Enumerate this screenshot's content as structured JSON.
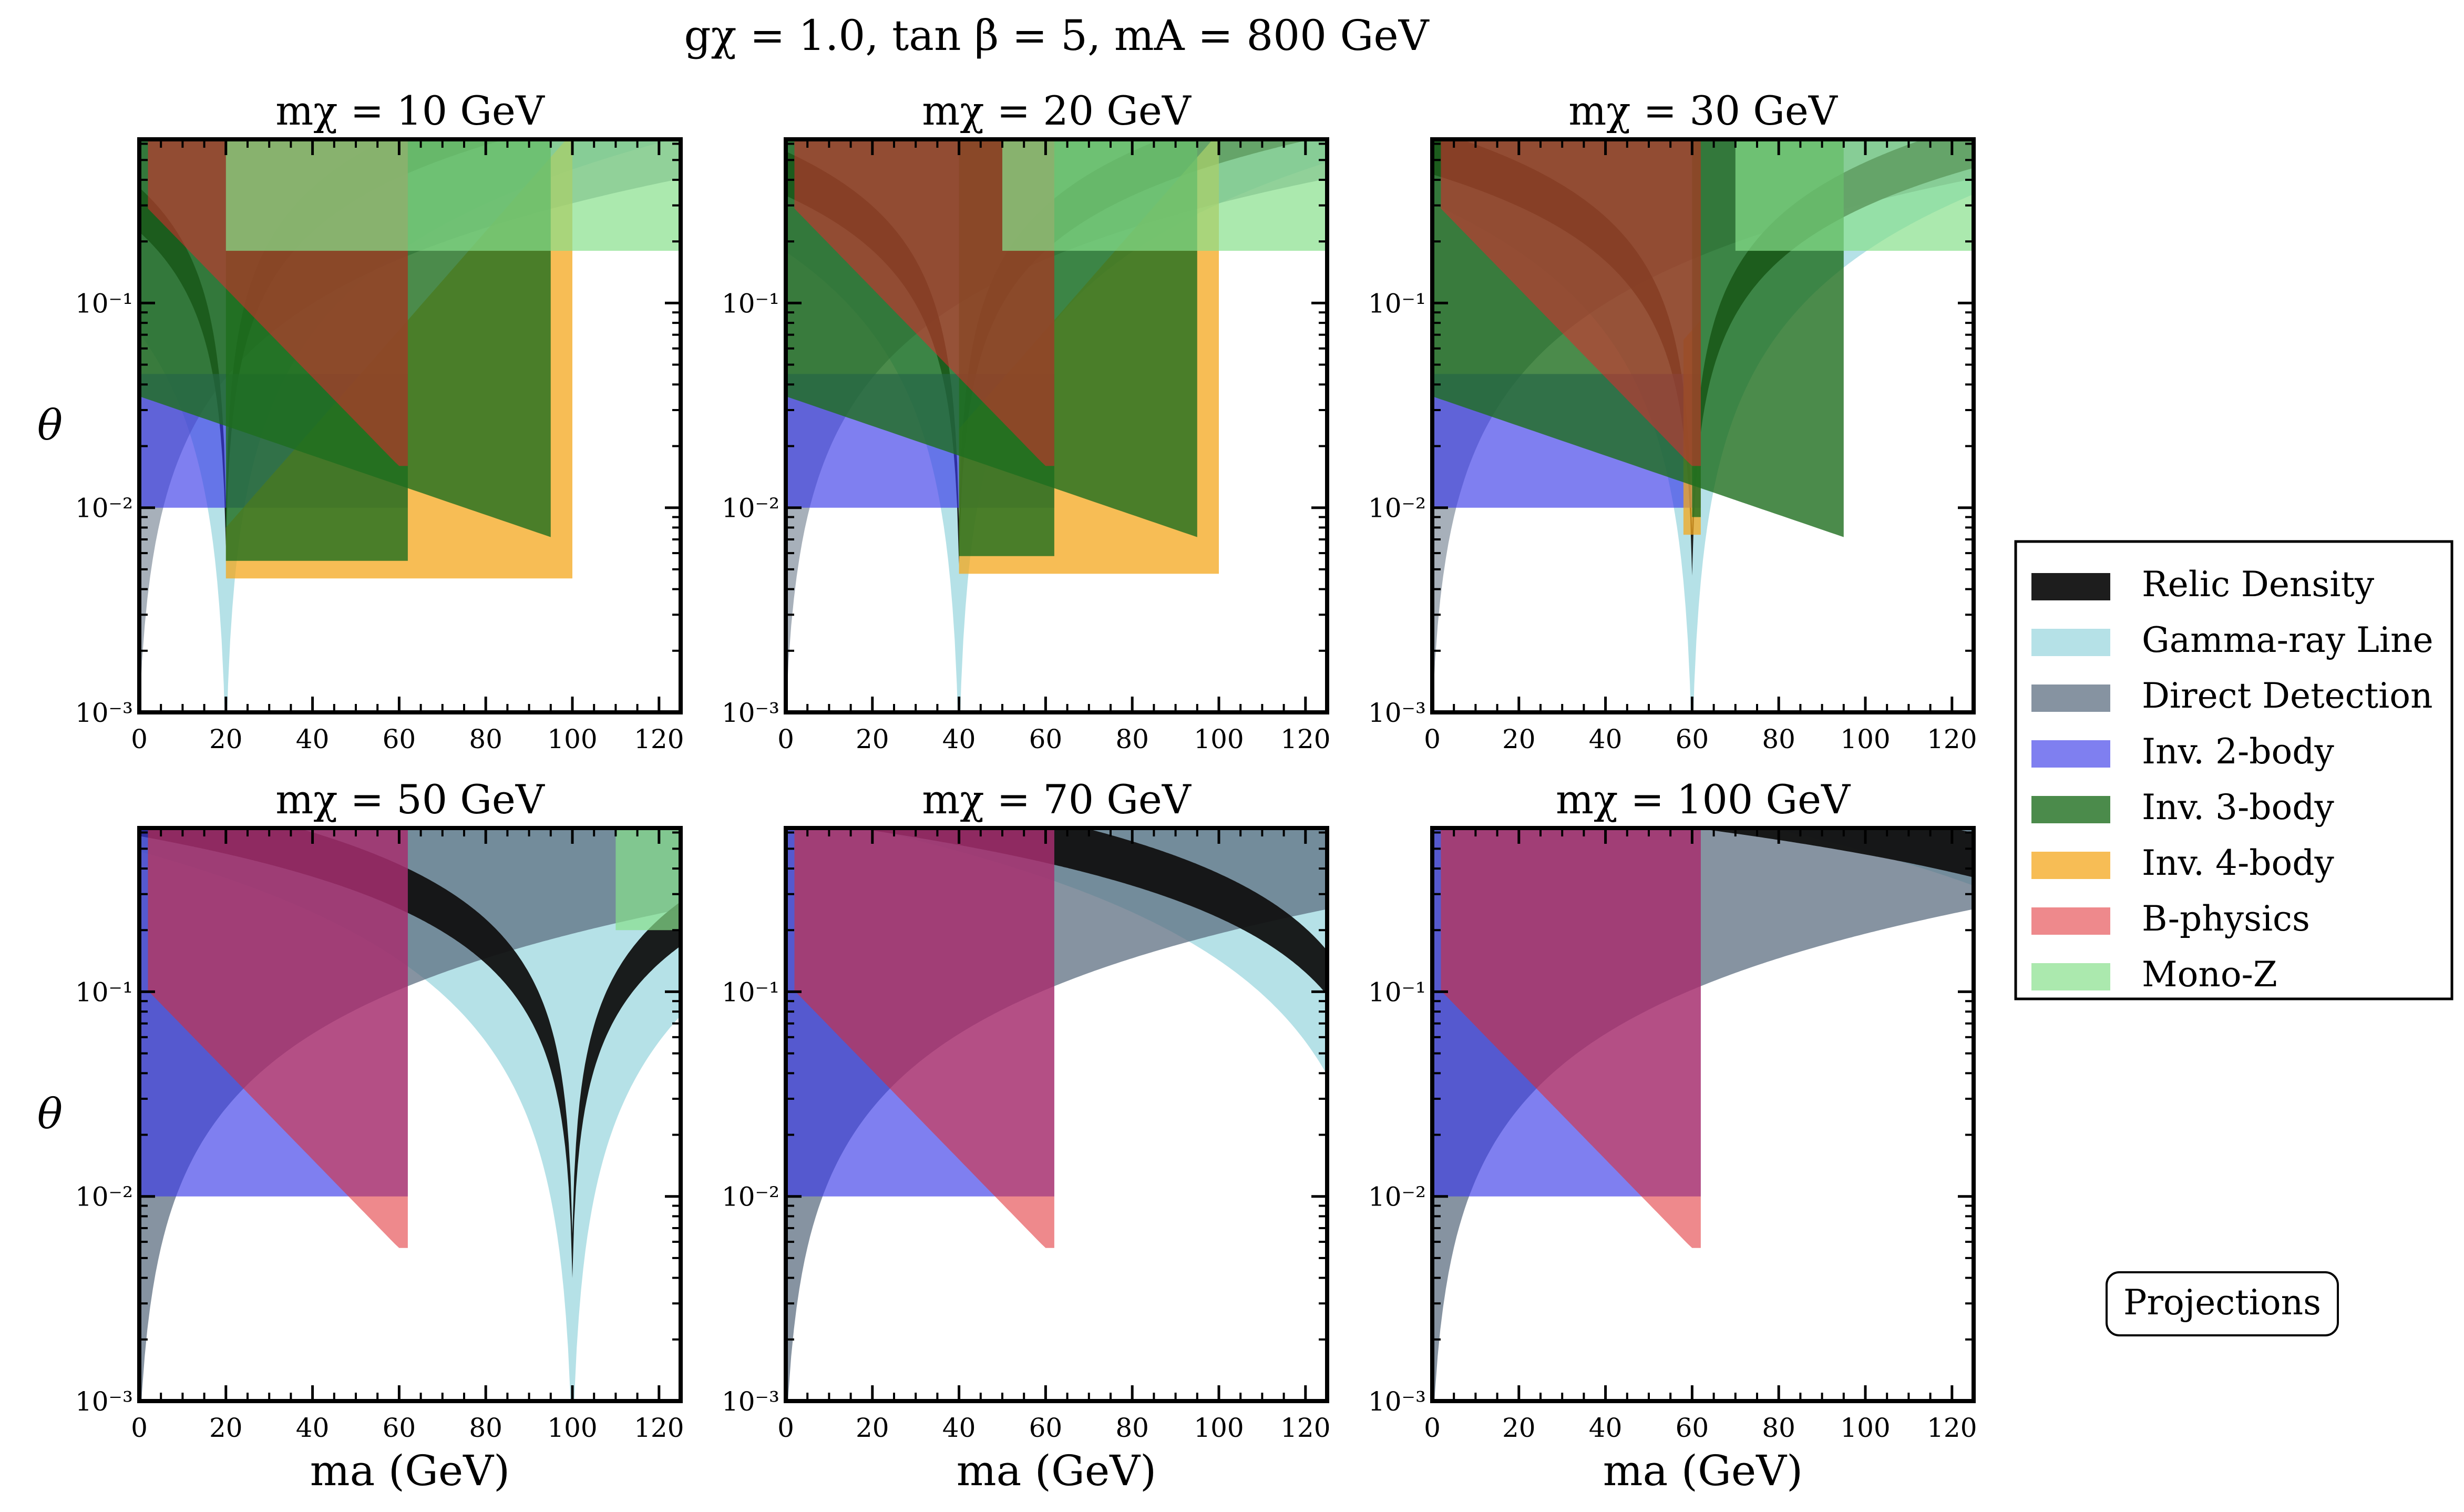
{
  "figure": {
    "suptitle": "gχ = 1.0,  tan β = 5,  mA = 800 GeV",
    "note_box": "Projections"
  },
  "colors": {
    "relic": "#111111",
    "gamma": "#a8dce3",
    "direct": "#5e6f82",
    "inv2": "#3a3ae8",
    "inv3": "#1e6e1e",
    "inv4": "#f4a71c",
    "bphys": "#e0282e",
    "monoz": "#88e08c"
  },
  "legend": [
    {
      "key": "relic",
      "label": "Relic Density",
      "alpha": 0.95
    },
    {
      "key": "gamma",
      "label": "Gamma-ray Line",
      "alpha": 0.85
    },
    {
      "key": "direct",
      "label": "Direct Detection",
      "alpha": 0.75
    },
    {
      "key": "inv2",
      "label": "Inv. 2-body",
      "alpha": 0.65
    },
    {
      "key": "inv3",
      "label": "Inv. 3-body",
      "alpha": 0.8
    },
    {
      "key": "inv4",
      "label": "Inv. 4-body",
      "alpha": 0.75
    },
    {
      "key": "bphys",
      "label": "B-physics",
      "alpha": 0.55
    },
    {
      "key": "monoz",
      "label": "Mono-Z",
      "alpha": 0.7
    }
  ],
  "chart_data": [
    {
      "type": "area",
      "mchi": 10,
      "title": "mχ = 10 GeV",
      "xlabel": "",
      "ylabel": "θ",
      "xlim": [
        0,
        125
      ],
      "ylim_log10": [
        -3,
        -0.2
      ],
      "xticks": [
        "0",
        "20",
        "40",
        "60",
        "80",
        "100",
        "120"
      ],
      "yticks": [
        "10⁻³",
        "10⁻²",
        "10⁻¹"
      ]
    },
    {
      "type": "area",
      "mchi": 20,
      "title": "mχ = 20 GeV",
      "xlabel": "",
      "ylabel": "",
      "xlim": [
        0,
        125
      ],
      "ylim_log10": [
        -3,
        -0.2
      ],
      "xticks": [
        "0",
        "20",
        "40",
        "60",
        "80",
        "100",
        "120"
      ],
      "yticks": [
        "10⁻³",
        "10⁻²",
        "10⁻¹"
      ]
    },
    {
      "type": "area",
      "mchi": 30,
      "title": "mχ = 30 GeV",
      "xlabel": "",
      "ylabel": "",
      "xlim": [
        0,
        125
      ],
      "ylim_log10": [
        -3,
        -0.2
      ],
      "xticks": [
        "0",
        "20",
        "40",
        "60",
        "80",
        "100",
        "120"
      ],
      "yticks": [
        "10⁻³",
        "10⁻²",
        "10⁻¹"
      ]
    },
    {
      "type": "area",
      "mchi": 50,
      "title": "mχ = 50 GeV",
      "xlabel": "ma (GeV)",
      "ylabel": "θ",
      "xlim": [
        0,
        125
      ],
      "ylim_log10": [
        -3,
        -0.2
      ],
      "xticks": [
        "0",
        "20",
        "40",
        "60",
        "80",
        "100",
        "120"
      ],
      "yticks": [
        "10⁻³",
        "10⁻²",
        "10⁻¹"
      ]
    },
    {
      "type": "area",
      "mchi": 70,
      "title": "mχ = 70 GeV",
      "xlabel": "ma (GeV)",
      "ylabel": "",
      "xlim": [
        0,
        125
      ],
      "ylim_log10": [
        -3,
        -0.2
      ],
      "xticks": [
        "0",
        "20",
        "40",
        "60",
        "80",
        "100",
        "120"
      ],
      "yticks": [
        "10⁻³",
        "10⁻²",
        "10⁻¹"
      ]
    },
    {
      "type": "area",
      "mchi": 100,
      "title": "mχ = 100 GeV",
      "xlabel": "ma (GeV)",
      "ylabel": "",
      "xlim": [
        0,
        125
      ],
      "ylim_log10": [
        -3,
        -0.2
      ],
      "xticks": [
        "0",
        "20",
        "40",
        "60",
        "80",
        "100",
        "120"
      ],
      "yticks": [
        "10⁻³",
        "10⁻²",
        "10⁻¹"
      ]
    }
  ]
}
